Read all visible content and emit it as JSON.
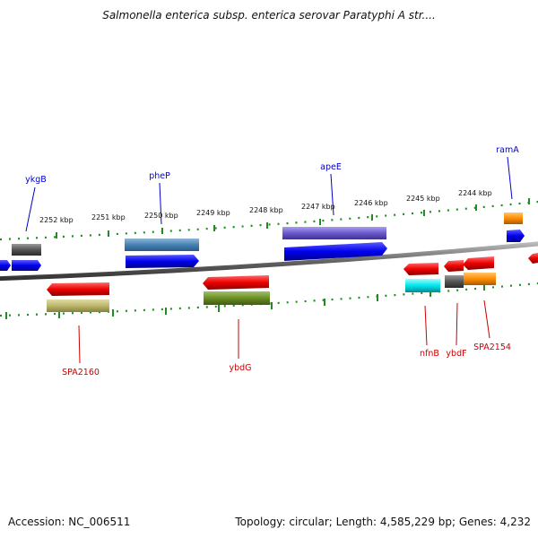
{
  "title": "Salmonella enterica subsp. enterica serovar Paratyphi A str....",
  "footer": {
    "accession": "Accession: NC_006511",
    "topology": "Topology: circular; Length: 4,585,229 bp; Genes: 4,232"
  },
  "kbp_labels": [
    "2252 kbp",
    "2251 kbp",
    "2250 kbp",
    "2249 kbp",
    "2248 kbp",
    "2247 kbp",
    "2246 kbp",
    "2245 kbp",
    "2244 kbp"
  ],
  "genes_top": [
    "ykgB",
    "pheP",
    "apeE",
    "ramA"
  ],
  "genes_bottom": [
    "SPA2160",
    "ybdG",
    "nfnB",
    "ybdF",
    "SPA2154"
  ],
  "colors": {
    "forward_label": "#0000cc",
    "reverse_label": "#cc0000",
    "blue": "#0000ee",
    "red": "#ee0000",
    "tick": "#228b22"
  }
}
